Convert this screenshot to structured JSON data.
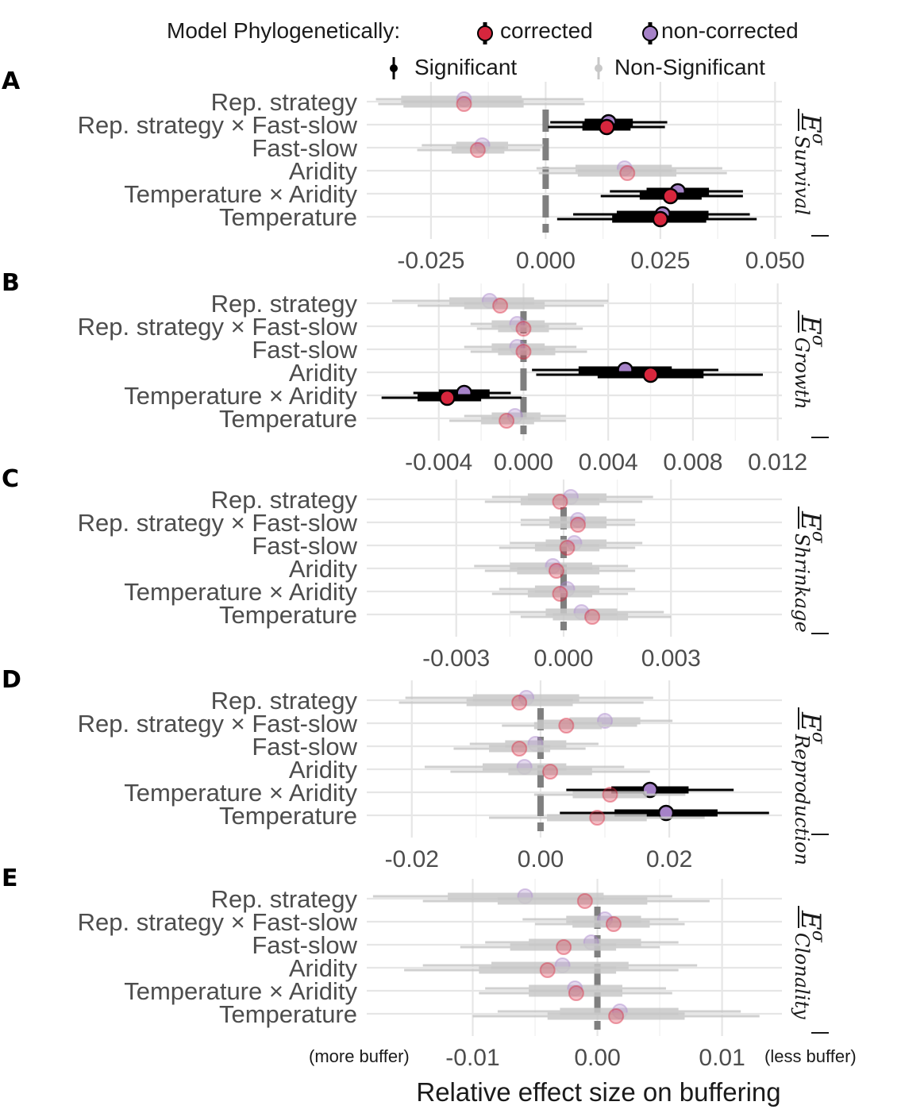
{
  "legend": {
    "title": "Model Phylogenetically:",
    "corrected_label": "corrected",
    "noncorrected_label": "non-corrected",
    "significant_label": "Significant",
    "nonsignificant_label": "Non-Significant"
  },
  "colors": {
    "corrected": "#d7263d",
    "noncorrected": "#a682c8",
    "significant_line": "#000000",
    "nonsignificant_line": "#c8c8c8",
    "grid": "#e6e6e6",
    "zero_line": "#7f7f7f"
  },
  "x_axis": {
    "title": "Relative effect size on buffering",
    "left_note": "(more buffer)",
    "right_note": "(less buffer)"
  },
  "chart_data": [
    {
      "type": "forest",
      "panel": "A",
      "strip_base": "E",
      "strip_sup": "σ",
      "strip_sub": "Survival",
      "xlim": [
        -0.039,
        0.0515
      ],
      "ticks": [
        -0.025,
        0.0,
        0.025,
        0.05
      ],
      "tick_labels": [
        "-0.025",
        "0.000",
        "0.025",
        "0.050"
      ],
      "rows": [
        {
          "label": "Rep. strategy",
          "noncorrected": {
            "est": -0.0178,
            "inner": [
              -0.0315,
              -0.0052
            ],
            "outer": [
              -0.037,
              0.0082
            ],
            "sig": false
          },
          "corrected": {
            "est": -0.0178,
            "inner": [
              -0.031,
              -0.0048
            ],
            "outer": [
              -0.0365,
              0.0085
            ],
            "sig": false
          }
        },
        {
          "label": "Rep. strategy × Fast-slow",
          "noncorrected": {
            "est": 0.0137,
            "inner": [
              0.0085,
              0.019
            ],
            "outer": [
              0.001,
              0.0265
            ],
            "sig": true
          },
          "corrected": {
            "est": 0.0133,
            "inner": [
              0.008,
              0.0185
            ],
            "outer": [
              0.0005,
              0.026
            ],
            "sig": true
          }
        },
        {
          "label": "Fast-slow",
          "noncorrected": {
            "est": -0.0138,
            "inner": [
              -0.0195,
              -0.0082
            ],
            "outer": [
              -0.027,
              -0.0005
            ],
            "sig": false
          },
          "corrected": {
            "est": -0.0148,
            "inner": [
              -0.0205,
              -0.009
            ],
            "outer": [
              -0.028,
              -0.0012
            ],
            "sig": false
          }
        },
        {
          "label": "Aridity",
          "noncorrected": {
            "est": 0.0172,
            "inner": [
              0.0065,
              0.0275
            ],
            "outer": [
              -0.002,
              0.0385
            ],
            "sig": false
          },
          "corrected": {
            "est": 0.0178,
            "inner": [
              0.007,
              0.0285
            ],
            "outer": [
              -0.0015,
              0.0395
            ],
            "sig": false
          }
        },
        {
          "label": "Temperature × Aridity",
          "noncorrected": {
            "est": 0.0288,
            "inner": [
              0.022,
              0.0356
            ],
            "outer": [
              0.014,
              0.043
            ],
            "sig": true
          },
          "corrected": {
            "est": 0.0272,
            "inner": [
              0.0205,
              0.034
            ],
            "outer": [
              0.012,
              0.043
            ],
            "sig": true
          }
        },
        {
          "label": "Temperature",
          "noncorrected": {
            "est": 0.0255,
            "inner": [
              0.0155,
              0.0355
            ],
            "outer": [
              0.006,
              0.0445
            ],
            "sig": true
          },
          "corrected": {
            "est": 0.025,
            "inner": [
              0.0145,
              0.035
            ],
            "outer": [
              0.0025,
              0.046
            ],
            "sig": true
          }
        }
      ]
    },
    {
      "type": "forest",
      "panel": "B",
      "strip_base": "E",
      "strip_sup": "σ",
      "strip_sub": "Growth",
      "xlim": [
        -0.0074,
        0.0122
      ],
      "ticks": [
        -0.004,
        0.0,
        0.004,
        0.008,
        0.012
      ],
      "tick_labels": [
        "-0.004",
        "0.000",
        "0.004",
        "0.008",
        "0.012"
      ],
      "rows": [
        {
          "label": "Rep. strategy",
          "noncorrected": {
            "est": -0.0016,
            "inner": [
              -0.0035,
              0.0005
            ],
            "outer": [
              -0.0062,
              0.004
            ],
            "sig": false
          },
          "corrected": {
            "est": -0.0011,
            "inner": [
              -0.0028,
              0.001
            ],
            "outer": [
              -0.005,
              0.0038
            ],
            "sig": false
          }
        },
        {
          "label": "Rep. strategy × Fast-slow",
          "noncorrected": {
            "est": -0.0003,
            "inner": [
              -0.0015,
              0.001
            ],
            "outer": [
              -0.0025,
              0.0025
            ],
            "sig": false
          },
          "corrected": {
            "est": 0.0,
            "inner": [
              -0.0012,
              0.0012
            ],
            "outer": [
              -0.0022,
              0.0028
            ],
            "sig": false
          }
        },
        {
          "label": "Fast-slow",
          "noncorrected": {
            "est": -0.0003,
            "inner": [
              -0.0015,
              0.001
            ],
            "outer": [
              -0.0028,
              0.0025
            ],
            "sig": false
          },
          "corrected": {
            "est": 0.0,
            "inner": [
              -0.0012,
              0.0015
            ],
            "outer": [
              -0.0025,
              0.003
            ],
            "sig": false
          }
        },
        {
          "label": "Aridity",
          "noncorrected": {
            "est": 0.0048,
            "inner": [
              0.0026,
              0.007
            ],
            "outer": [
              0.0004,
              0.0092
            ],
            "sig": true
          },
          "corrected": {
            "est": 0.006,
            "inner": [
              0.0035,
              0.0085
            ],
            "outer": [
              0.0006,
              0.0113
            ],
            "sig": true
          }
        },
        {
          "label": "Temperature × Aridity",
          "noncorrected": {
            "est": -0.0028,
            "inner": [
              -0.004,
              -0.0016
            ],
            "outer": [
              -0.0052,
              -0.0006
            ],
            "sig": true
          },
          "corrected": {
            "est": -0.0036,
            "inner": [
              -0.005,
              -0.002
            ],
            "outer": [
              -0.0067,
              -0.0001
            ],
            "sig": true
          }
        },
        {
          "label": "Temperature",
          "noncorrected": {
            "est": -0.0004,
            "inner": [
              -0.0015,
              0.0008
            ],
            "outer": [
              -0.0028,
              0.002
            ],
            "sig": false
          },
          "corrected": {
            "est": -0.0008,
            "inner": [
              -0.002,
              0.0005
            ],
            "outer": [
              -0.0035,
              0.002
            ],
            "sig": false
          }
        }
      ]
    },
    {
      "type": "forest",
      "panel": "C",
      "strip_base": "E",
      "strip_sup": "σ",
      "strip_sub": "Shrinkage",
      "xlim": [
        -0.0055,
        0.0061
      ],
      "ticks": [
        -0.003,
        0.0,
        0.003
      ],
      "tick_labels": [
        "-0.003",
        "0.000",
        "0.003"
      ],
      "rows": [
        {
          "label": "Rep. strategy",
          "noncorrected": {
            "est": 0.0002,
            "inner": [
              -0.001,
              0.0012
            ],
            "outer": [
              -0.002,
              0.0025
            ],
            "sig": false
          },
          "corrected": {
            "est": -0.0001,
            "inner": [
              -0.0012,
              0.001
            ],
            "outer": [
              -0.0022,
              0.0022
            ],
            "sig": false
          }
        },
        {
          "label": "Rep. strategy × Fast-slow",
          "noncorrected": {
            "est": 0.0004,
            "inner": [
              -0.0004,
              0.0012
            ],
            "outer": [
              -0.0012,
              0.002
            ],
            "sig": false
          },
          "corrected": {
            "est": 0.0004,
            "inner": [
              -0.0004,
              0.0012
            ],
            "outer": [
              -0.0012,
              0.002
            ],
            "sig": false
          }
        },
        {
          "label": "Fast-slow",
          "noncorrected": {
            "est": 0.0003,
            "inner": [
              -0.0005,
              0.0012
            ],
            "outer": [
              -0.0015,
              0.0022
            ],
            "sig": false
          },
          "corrected": {
            "est": 0.0001,
            "inner": [
              -0.0008,
              0.001
            ],
            "outer": [
              -0.0018,
              0.002
            ],
            "sig": false
          }
        },
        {
          "label": "Aridity",
          "noncorrected": {
            "est": -0.0003,
            "inner": [
              -0.0015,
              0.0008
            ],
            "outer": [
              -0.0025,
              0.0018
            ],
            "sig": false
          },
          "corrected": {
            "est": -0.0002,
            "inner": [
              -0.0013,
              0.001
            ],
            "outer": [
              -0.0022,
              0.002
            ],
            "sig": false
          }
        },
        {
          "label": "Temperature × Aridity",
          "noncorrected": {
            "est": 0.0001,
            "inner": [
              -0.0008,
              0.001
            ],
            "outer": [
              -0.0018,
              0.002
            ],
            "sig": false
          },
          "corrected": {
            "est": -0.0001,
            "inner": [
              -0.001,
              0.0008
            ],
            "outer": [
              -0.002,
              0.0018
            ],
            "sig": false
          }
        },
        {
          "label": "Temperature",
          "noncorrected": {
            "est": 0.0005,
            "inner": [
              -0.0005,
              0.0015
            ],
            "outer": [
              -0.0015,
              0.0028
            ],
            "sig": false
          },
          "corrected": {
            "est": 0.0008,
            "inner": [
              -0.0003,
              0.0018
            ],
            "outer": [
              -0.0012,
              0.003
            ],
            "sig": false
          }
        }
      ]
    },
    {
      "type": "forest",
      "panel": "D",
      "strip_base": "E",
      "strip_sup": "σ",
      "strip_sub": "Reproduction",
      "xlim": [
        -0.027,
        0.0375
      ],
      "ticks": [
        -0.02,
        0.0,
        0.02
      ],
      "tick_labels": [
        "-0.02",
        "0.00",
        "0.02"
      ],
      "rows": [
        {
          "label": "Rep. strategy",
          "noncorrected": {
            "est": -0.0022,
            "inner": [
              -0.0105,
              0.006
            ],
            "outer": [
              -0.021,
              0.0175
            ],
            "sig": false
          },
          "corrected": {
            "est": -0.0033,
            "inner": [
              -0.0115,
              0.005
            ],
            "outer": [
              -0.022,
              0.016
            ],
            "sig": false
          }
        },
        {
          "label": "Rep. strategy × Fast-slow",
          "noncorrected": {
            "est": 0.01,
            "inner": [
              0.0045,
              0.0155
            ],
            "outer": [
              -0.0005,
              0.0205
            ],
            "sig": false
          },
          "corrected": {
            "est": 0.004,
            "inner": [
              -0.001,
              0.0095
            ],
            "outer": [
              -0.006,
              0.015
            ],
            "sig": false
          }
        },
        {
          "label": "Fast-slow",
          "noncorrected": {
            "est": -0.0008,
            "inner": [
              -0.0055,
              0.004
            ],
            "outer": [
              -0.011,
              0.009
            ],
            "sig": false
          },
          "corrected": {
            "est": -0.0033,
            "inner": [
              -0.008,
              0.0015
            ],
            "outer": [
              -0.0135,
              0.007
            ],
            "sig": false
          }
        },
        {
          "label": "Aridity",
          "noncorrected": {
            "est": -0.0025,
            "inner": [
              -0.009,
              0.004
            ],
            "outer": [
              -0.018,
              0.013
            ],
            "sig": false
          },
          "corrected": {
            "est": 0.0015,
            "inner": [
              -0.005,
              0.008
            ],
            "outer": [
              -0.014,
              0.017
            ],
            "sig": false
          }
        },
        {
          "label": "Temperature × Aridity",
          "noncorrected": {
            "est": 0.017,
            "inner": [
              0.011,
              0.023
            ],
            "outer": [
              0.004,
              0.03
            ],
            "sig": true
          },
          "corrected": {
            "est": 0.0108,
            "inner": [
              0.005,
              0.0165
            ],
            "outer": [
              -0.001,
              0.0225
            ],
            "sig": false
          }
        },
        {
          "label": "Temperature",
          "noncorrected": {
            "est": 0.0195,
            "inner": [
              0.0115,
              0.0275
            ],
            "outer": [
              0.003,
              0.0355
            ],
            "sig": true
          },
          "corrected": {
            "est": 0.0088,
            "inner": [
              0.001,
              0.0165
            ],
            "outer": [
              -0.008,
              0.0255
            ],
            "sig": false
          }
        }
      ]
    },
    {
      "type": "forest",
      "panel": "E",
      "strip_base": "E",
      "strip_sup": "σ",
      "strip_sub": "Clonality",
      "xlim": [
        -0.0185,
        0.0148
      ],
      "ticks": [
        -0.01,
        0.0,
        0.01
      ],
      "tick_labels": [
        "-0.01",
        "0.00",
        "0.01"
      ],
      "rows": [
        {
          "label": "Rep. strategy",
          "noncorrected": {
            "est": -0.0058,
            "inner": [
              -0.012,
              0.0005
            ],
            "outer": [
              -0.018,
              0.006
            ],
            "sig": false
          },
          "corrected": {
            "est": -0.001,
            "inner": [
              -0.008,
              0.004
            ],
            "outer": [
              -0.014,
              0.009
            ],
            "sig": false
          }
        },
        {
          "label": "Rep. strategy × Fast-slow",
          "noncorrected": {
            "est": 0.0006,
            "inner": [
              -0.0025,
              0.0035
            ],
            "outer": [
              -0.006,
              0.0065
            ],
            "sig": false
          },
          "corrected": {
            "est": 0.0013,
            "inner": [
              -0.002,
              0.0042
            ],
            "outer": [
              -0.005,
              0.007
            ],
            "sig": false
          }
        },
        {
          "label": "Fast-slow",
          "noncorrected": {
            "est": -0.0005,
            "inner": [
              -0.0055,
              0.0035
            ],
            "outer": [
              -0.009,
              0.0065
            ],
            "sig": false
          },
          "corrected": {
            "est": -0.0027,
            "inner": [
              -0.007,
              0.0015
            ],
            "outer": [
              -0.011,
              0.005
            ],
            "sig": false
          }
        },
        {
          "label": "Aridity",
          "noncorrected": {
            "est": -0.0028,
            "inner": [
              -0.0085,
              0.0025
            ],
            "outer": [
              -0.014,
              0.008
            ],
            "sig": false
          },
          "corrected": {
            "est": -0.004,
            "inner": [
              -0.0095,
              0.0015
            ],
            "outer": [
              -0.0155,
              0.0065
            ],
            "sig": false
          }
        },
        {
          "label": "Temperature × Aridity",
          "noncorrected": {
            "est": -0.0018,
            "inner": [
              -0.0055,
              0.002
            ],
            "outer": [
              -0.009,
              0.0055
            ],
            "sig": false
          },
          "corrected": {
            "est": -0.0017,
            "inner": [
              -0.0055,
              0.002
            ],
            "outer": [
              -0.0095,
              0.006
            ],
            "sig": false
          }
        },
        {
          "label": "Temperature",
          "noncorrected": {
            "est": 0.0018,
            "inner": [
              -0.003,
              0.0065
            ],
            "outer": [
              -0.008,
              0.0115
            ],
            "sig": false
          },
          "corrected": {
            "est": 0.0015,
            "inner": [
              -0.004,
              0.007
            ],
            "outer": [
              -0.01,
              0.013
            ],
            "sig": false
          }
        }
      ]
    }
  ]
}
